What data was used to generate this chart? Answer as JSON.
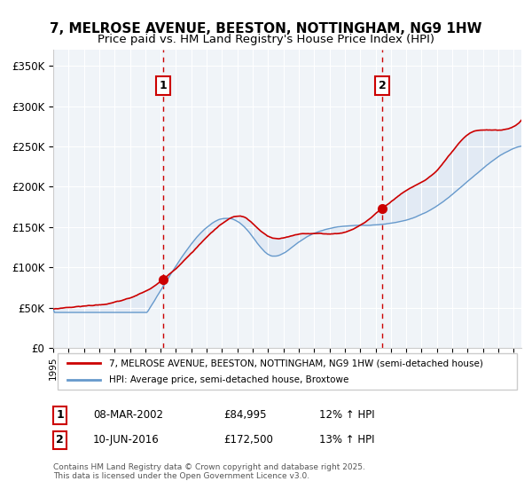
{
  "title_line1": "7, MELROSE AVENUE, BEESTON, NOTTINGHAM, NG9 1HW",
  "title_line2": "Price paid vs. HM Land Registry's House Price Index (HPI)",
  "xlabel": "",
  "ylabel": "",
  "ylim": [
    0,
    370000
  ],
  "xlim_start": 1995.0,
  "xlim_end": 2025.5,
  "yticks": [
    0,
    50000,
    100000,
    150000,
    200000,
    250000,
    300000,
    350000
  ],
  "ytick_labels": [
    "£0",
    "£50K",
    "£100K",
    "£150K",
    "£200K",
    "£250K",
    "£300K",
    "£350K"
  ],
  "xtick_years": [
    1995,
    1996,
    1997,
    1998,
    1999,
    2000,
    2001,
    2002,
    2003,
    2004,
    2005,
    2006,
    2007,
    2008,
    2009,
    2010,
    2011,
    2012,
    2013,
    2014,
    2015,
    2016,
    2017,
    2018,
    2019,
    2020,
    2021,
    2022,
    2023,
    2024,
    2025
  ],
  "vline1_x": 2002.18,
  "vline2_x": 2016.44,
  "sale1_x": 2002.18,
  "sale1_y": 84995,
  "sale2_x": 2016.44,
  "sale2_y": 172500,
  "red_line_color": "#cc0000",
  "blue_line_color": "#6699cc",
  "blue_fill_color": "#c8d8ee",
  "vline_color": "#cc0000",
  "background_color": "#f0f4f8",
  "plot_bg_color": "#f0f4f8",
  "legend_label_red": "7, MELROSE AVENUE, BEESTON, NOTTINGHAM, NG9 1HW (semi-detached house)",
  "legend_label_blue": "HPI: Average price, semi-detached house, Broxtowe",
  "annotation1_label": "1",
  "annotation2_label": "2",
  "table_row1": [
    "1",
    "08-MAR-2002",
    "£84,995",
    "12% ↑ HPI"
  ],
  "table_row2": [
    "2",
    "10-JUN-2016",
    "£172,500",
    "13% ↑ HPI"
  ],
  "footer_text": "Contains HM Land Registry data © Crown copyright and database right 2025.\nThis data is licensed under the Open Government Licence v3.0.",
  "title_fontsize": 11,
  "subtitle_fontsize": 9.5
}
